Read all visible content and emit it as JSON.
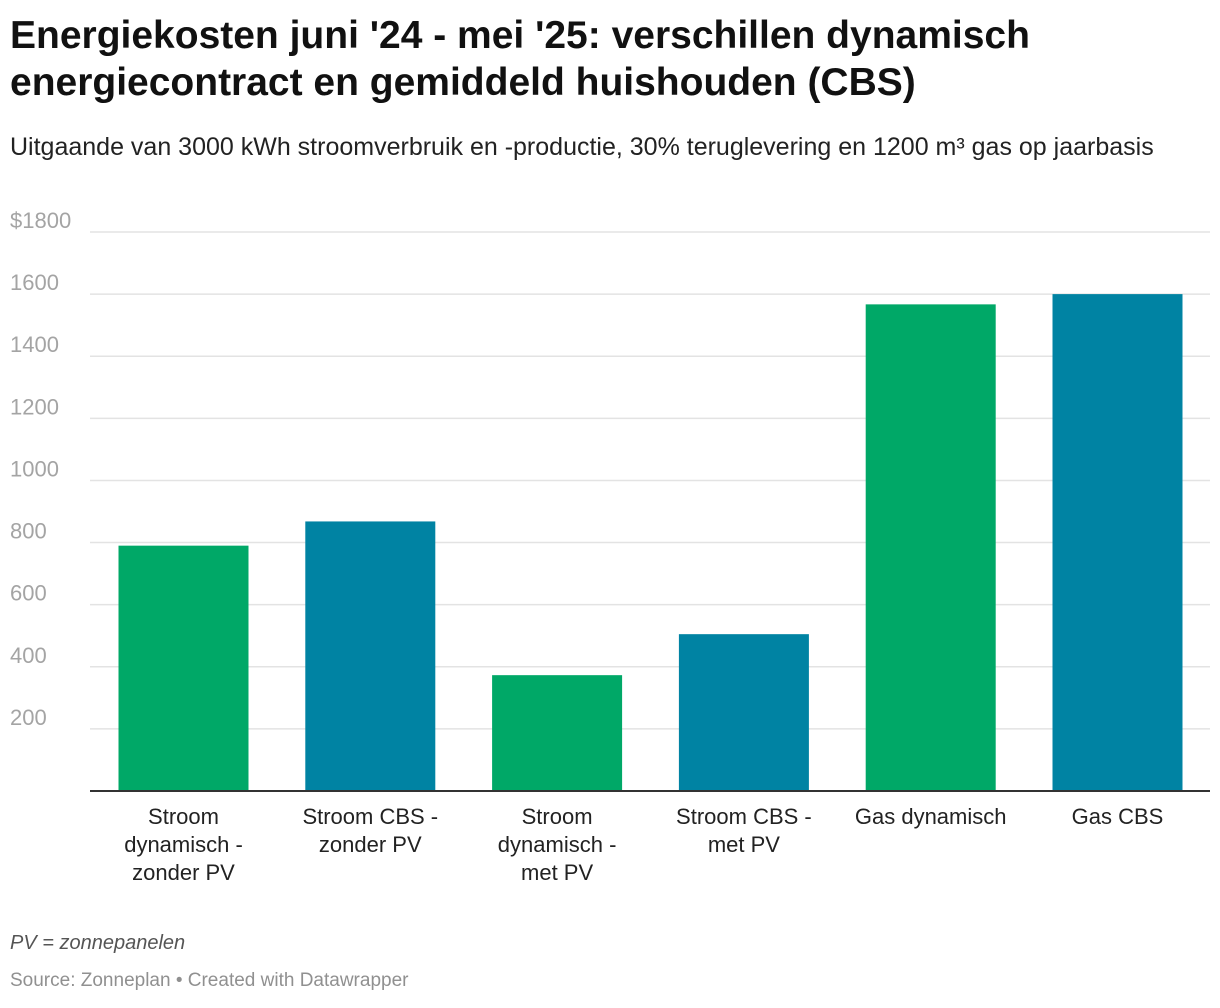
{
  "header": {
    "title": "Energiekosten juni '24 - mei '25: verschillen dynamisch energiecontract en gemiddeld huishouden (CBS)",
    "subtitle": "Uitgaande van 3000 kWh stroomverbruik en -productie, 30% teruglevering en 1200 m³ gas op jaarbasis"
  },
  "colors": {
    "green": "#00a867",
    "blue": "#0083a3"
  },
  "chart_data": {
    "type": "bar",
    "categories": [
      [
        "Stroom",
        "dynamisch -",
        "zonder PV"
      ],
      [
        "Stroom CBS -",
        "zonder PV"
      ],
      [
        "Stroom",
        "dynamisch -",
        "met PV"
      ],
      [
        "Stroom CBS -",
        "met PV"
      ],
      [
        "Gas dynamisch"
      ],
      [
        "Gas CBS"
      ]
    ],
    "values": [
      790,
      868,
      373,
      505,
      1567,
      1600
    ],
    "bar_colors": [
      "#00a867",
      "#0083a3",
      "#00a867",
      "#0083a3",
      "#00a867",
      "#0083a3"
    ],
    "ylim": [
      0,
      1800
    ],
    "yticks": [
      200,
      400,
      600,
      800,
      1000,
      1200,
      1400,
      1600,
      1800
    ],
    "ytick_labels": [
      "200",
      "400",
      "600",
      "800",
      "1000",
      "1200",
      "1400",
      "1600",
      "$1800"
    ],
    "grid": true
  },
  "footer": {
    "note": "PV = zonnepanelen",
    "source": "Source: Zonneplan • Created with Datawrapper"
  }
}
